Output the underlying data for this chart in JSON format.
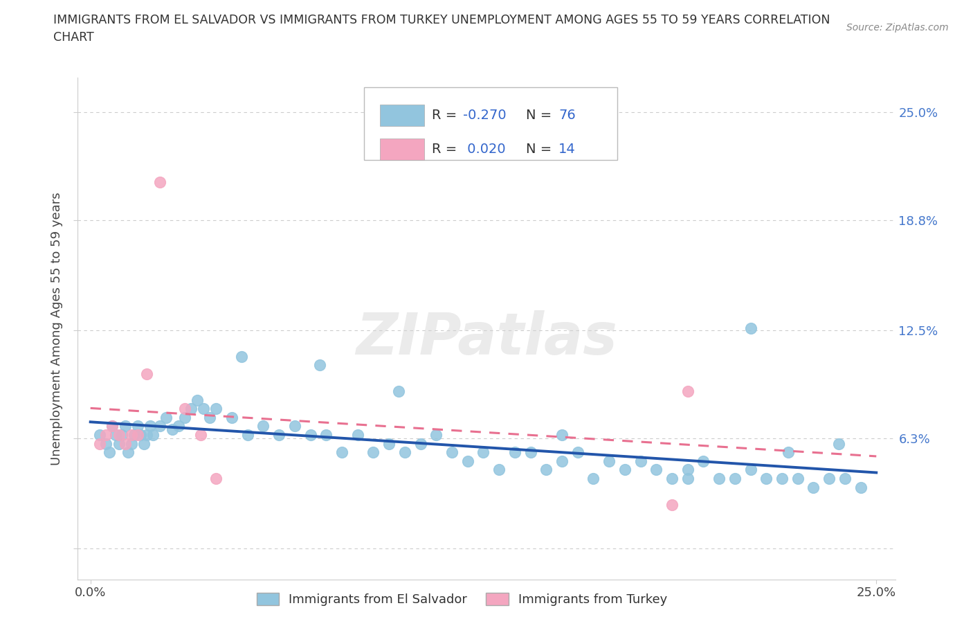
{
  "title_line1": "IMMIGRANTS FROM EL SALVADOR VS IMMIGRANTS FROM TURKEY UNEMPLOYMENT AMONG AGES 55 TO 59 YEARS CORRELATION",
  "title_line2": "CHART",
  "source": "Source: ZipAtlas.com",
  "ylabel": "Unemployment Among Ages 55 to 59 years",
  "blue_color": "#92C5DE",
  "pink_color": "#F4A6C0",
  "blue_line_color": "#2255AA",
  "pink_line_color": "#E87090",
  "R_blue": -0.27,
  "N_blue": 76,
  "R_pink": 0.02,
  "N_pink": 14,
  "xlim": [
    -0.004,
    0.256
  ],
  "ylim": [
    -0.018,
    0.27
  ],
  "ytick_vals": [
    0.0,
    0.063,
    0.125,
    0.188,
    0.25
  ],
  "ytick_labels_right": [
    "",
    "6.3%",
    "12.5%",
    "18.8%",
    "25.0%"
  ],
  "xtick_vals": [
    0.0,
    0.25
  ],
  "xtick_labels": [
    "0.0%",
    "25.0%"
  ],
  "watermark_text": "ZIPatlas",
  "legend1_label": "Immigrants from El Salvador",
  "legend2_label": "Immigrants from Turkey",
  "blue_x": [
    0.003,
    0.005,
    0.006,
    0.007,
    0.008,
    0.009,
    0.01,
    0.011,
    0.012,
    0.013,
    0.014,
    0.015,
    0.016,
    0.017,
    0.018,
    0.019,
    0.02,
    0.022,
    0.024,
    0.026,
    0.028,
    0.03,
    0.032,
    0.034,
    0.036,
    0.038,
    0.04,
    0.045,
    0.05,
    0.055,
    0.06,
    0.065,
    0.07,
    0.075,
    0.08,
    0.085,
    0.09,
    0.095,
    0.1,
    0.105,
    0.11,
    0.115,
    0.12,
    0.125,
    0.13,
    0.135,
    0.14,
    0.145,
    0.15,
    0.155,
    0.16,
    0.165,
    0.17,
    0.175,
    0.18,
    0.185,
    0.19,
    0.195,
    0.2,
    0.205,
    0.21,
    0.215,
    0.22,
    0.225,
    0.23,
    0.235,
    0.24,
    0.245,
    0.048,
    0.073,
    0.098,
    0.15,
    0.19,
    0.21,
    0.222,
    0.238
  ],
  "blue_y": [
    0.065,
    0.06,
    0.055,
    0.07,
    0.065,
    0.06,
    0.065,
    0.07,
    0.055,
    0.06,
    0.065,
    0.07,
    0.065,
    0.06,
    0.065,
    0.07,
    0.065,
    0.07,
    0.075,
    0.068,
    0.07,
    0.075,
    0.08,
    0.085,
    0.08,
    0.075,
    0.08,
    0.075,
    0.065,
    0.07,
    0.065,
    0.07,
    0.065,
    0.065,
    0.055,
    0.065,
    0.055,
    0.06,
    0.055,
    0.06,
    0.065,
    0.055,
    0.05,
    0.055,
    0.045,
    0.055,
    0.055,
    0.045,
    0.05,
    0.055,
    0.04,
    0.05,
    0.045,
    0.05,
    0.045,
    0.04,
    0.045,
    0.05,
    0.04,
    0.04,
    0.045,
    0.04,
    0.04,
    0.04,
    0.035,
    0.04,
    0.04,
    0.035,
    0.11,
    0.105,
    0.09,
    0.065,
    0.04,
    0.126,
    0.055,
    0.06
  ],
  "pink_x": [
    0.003,
    0.005,
    0.007,
    0.009,
    0.011,
    0.013,
    0.015,
    0.018,
    0.022,
    0.03,
    0.035,
    0.04,
    0.185,
    0.19
  ],
  "pink_y": [
    0.06,
    0.065,
    0.07,
    0.065,
    0.06,
    0.065,
    0.065,
    0.1,
    0.21,
    0.08,
    0.065,
    0.04,
    0.025,
    0.09
  ]
}
